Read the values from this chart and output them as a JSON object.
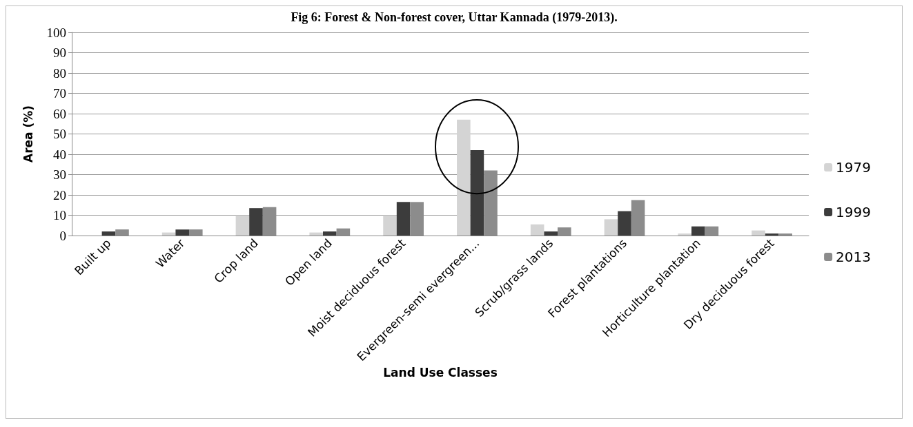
{
  "chart_data": {
    "type": "bar",
    "title": "Fig 6: Forest & Non-forest cover, Uttar Kannada (1979-2013).",
    "xlabel": "Land Use Classes",
    "ylabel": "Area (%)",
    "categories": [
      "Built up",
      "Water",
      "Crop land",
      "Open land",
      "Moist deciduous forest",
      "Evergreen-semi evergreen...",
      "Scrub/grass lands",
      "Forest plantations",
      "Horticulture plantation",
      "Dry deciduous forest"
    ],
    "series": [
      {
        "name": "1979",
        "color": "#d4d4d4",
        "values": [
          0,
          1.5,
          10,
          1.5,
          10,
          57,
          5.5,
          8,
          1,
          2.5
        ]
      },
      {
        "name": "1999",
        "color": "#3c3c3c",
        "values": [
          2,
          3,
          13.5,
          2,
          16.5,
          42,
          2,
          12,
          4.5,
          1
        ]
      },
      {
        "name": "2013",
        "color": "#8c8c8c",
        "values": [
          3,
          3,
          14,
          3.5,
          16.5,
          32,
          4,
          17.5,
          4.5,
          1
        ]
      }
    ],
    "ylim": [
      0,
      100
    ],
    "yticks": [
      0,
      10,
      20,
      30,
      40,
      50,
      60,
      70,
      80,
      90,
      100
    ],
    "grid": "y",
    "legend": "right"
  }
}
